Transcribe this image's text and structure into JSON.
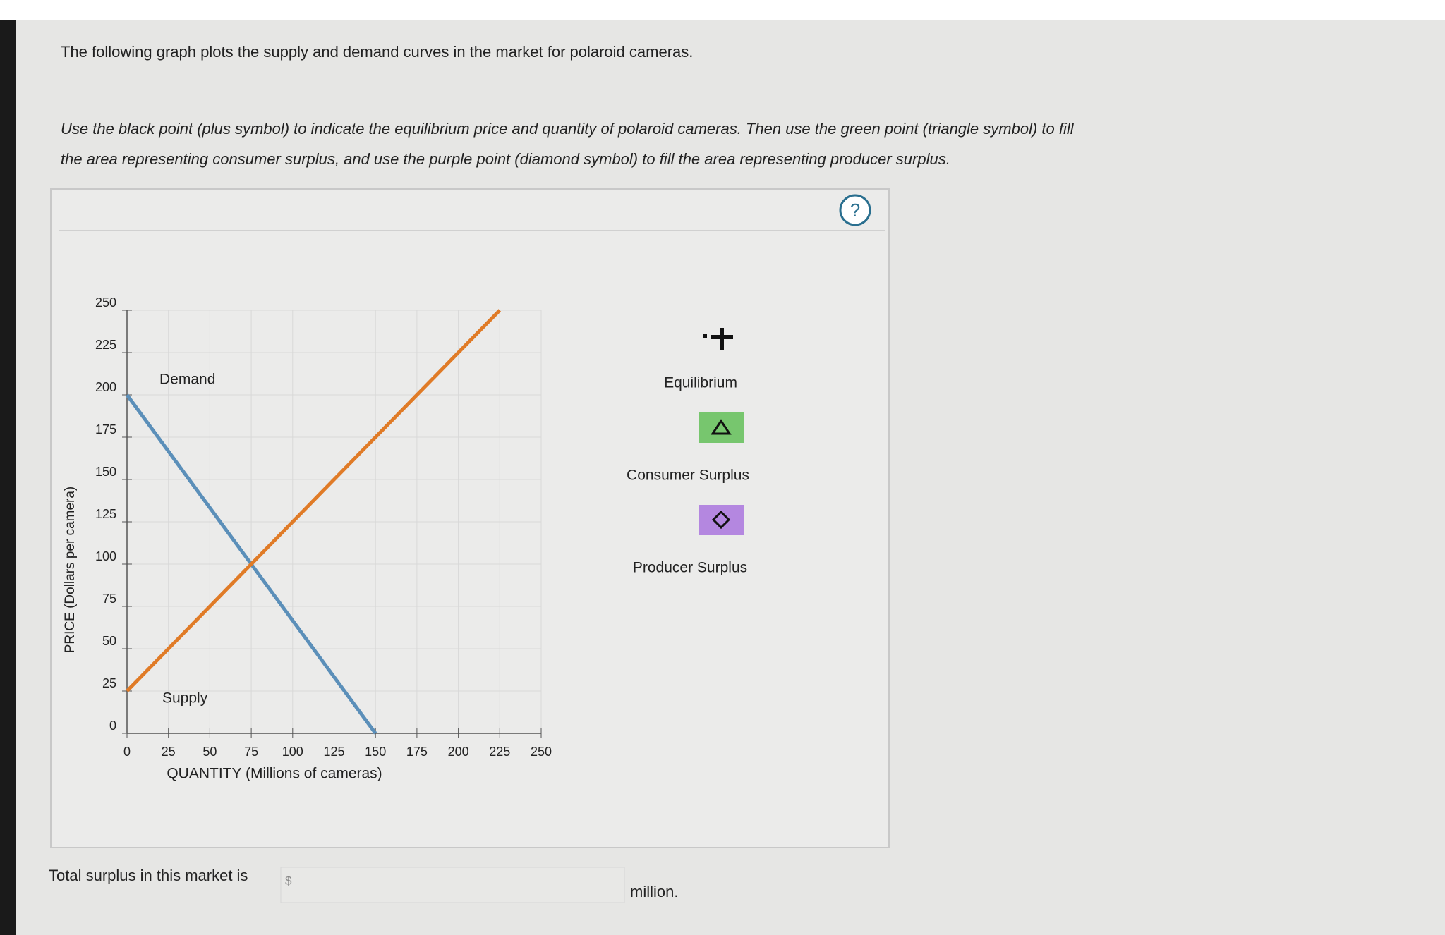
{
  "header": {
    "text": "The following graph plots the supply and demand curves in the market for polaroid cameras."
  },
  "instructions": {
    "line1": "Use the black point (plus symbol) to indicate the equilibrium price and quantity of polaroid cameras. Then use the green point (triangle symbol) to fill",
    "line2": "the area representing consumer surplus, and use the purple point (diamond symbol) to fill the area representing producer surplus."
  },
  "help": {
    "label": "?"
  },
  "chart_data": {
    "type": "line",
    "x_label": "QUANTITY (Millions of cameras)",
    "y_label": "PRICE (Dollars per camera)",
    "xlim": [
      0,
      250
    ],
    "ylim": [
      0,
      250
    ],
    "xticks": [
      0,
      25,
      50,
      75,
      100,
      125,
      150,
      175,
      200,
      225,
      250
    ],
    "yticks": [
      0,
      25,
      50,
      75,
      100,
      125,
      150,
      175,
      200,
      225,
      250
    ],
    "grid": true,
    "series": [
      {
        "name": "Demand",
        "color": "#5b8fb9",
        "x": [
          0,
          150
        ],
        "values": [
          200,
          0
        ]
      },
      {
        "name": "Supply",
        "color": "#e07b27",
        "x": [
          0,
          225
        ],
        "values": [
          25,
          250
        ]
      }
    ]
  },
  "tools": [
    {
      "label": "Equilibrium"
    },
    {
      "label": "Consumer Surplus"
    },
    {
      "label": "Producer Surplus"
    }
  ],
  "answer": {
    "prompt": "Total surplus in this market is",
    "currency": "$",
    "unit": "million."
  }
}
